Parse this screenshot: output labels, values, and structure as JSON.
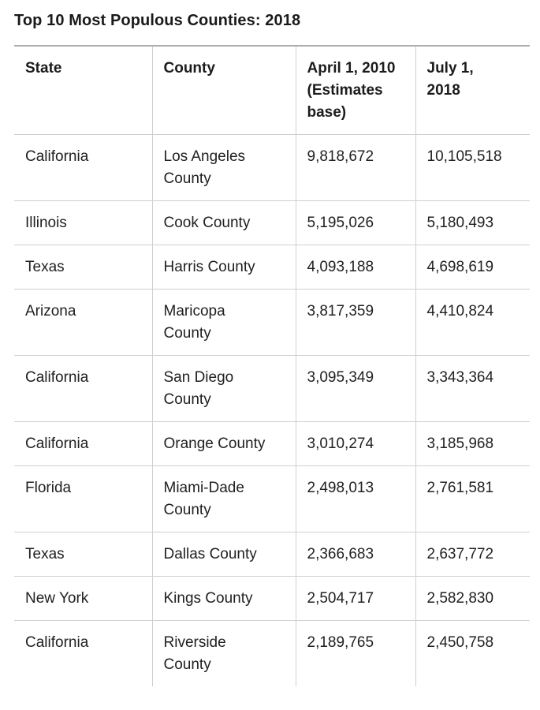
{
  "chart_data": {
    "type": "table",
    "title": "Top 10 Most Populous Counties: 2018",
    "columns": [
      {
        "id": "state",
        "label": "State"
      },
      {
        "id": "county",
        "label": "County"
      },
      {
        "id": "pop_2010",
        "label": "April 1, 2010 (Estimates base)"
      },
      {
        "id": "pop_2018",
        "label": "July 1, 2018"
      }
    ],
    "rows": [
      {
        "state": "California",
        "county": "Los Angeles County",
        "pop_2010": "9,818,672",
        "pop_2018": "10,105,518"
      },
      {
        "state": "Illinois",
        "county": "Cook County",
        "pop_2010": "5,195,026",
        "pop_2018": "5,180,493"
      },
      {
        "state": "Texas",
        "county": "Harris County",
        "pop_2010": "4,093,188",
        "pop_2018": "4,698,619"
      },
      {
        "state": "Arizona",
        "county": "Maricopa County",
        "pop_2010": "3,817,359",
        "pop_2018": "4,410,824"
      },
      {
        "state": "California",
        "county": "San Diego County",
        "pop_2010": "3,095,349",
        "pop_2018": "3,343,364"
      },
      {
        "state": "California",
        "county": "Orange County",
        "pop_2010": "3,010,274",
        "pop_2018": "3,185,968"
      },
      {
        "state": "Florida",
        "county": "Miami-Dade County",
        "pop_2010": "2,498,013",
        "pop_2018": "2,761,581"
      },
      {
        "state": "Texas",
        "county": "Dallas County",
        "pop_2010": "2,366,683",
        "pop_2018": "2,637,772"
      },
      {
        "state": "New York",
        "county": "Kings County",
        "pop_2010": "2,504,717",
        "pop_2018": "2,582,830"
      },
      {
        "state": "California",
        "county": "Riverside County",
        "pop_2010": "2,189,765",
        "pop_2018": "2,450,758"
      }
    ],
    "layout": {
      "grid": "internal borders only, no outer left/right/bottom border",
      "border_color": "#d0d0d0",
      "top_rule_color": "#adadad",
      "text_color": "#212121",
      "background": "#ffffff"
    }
  }
}
